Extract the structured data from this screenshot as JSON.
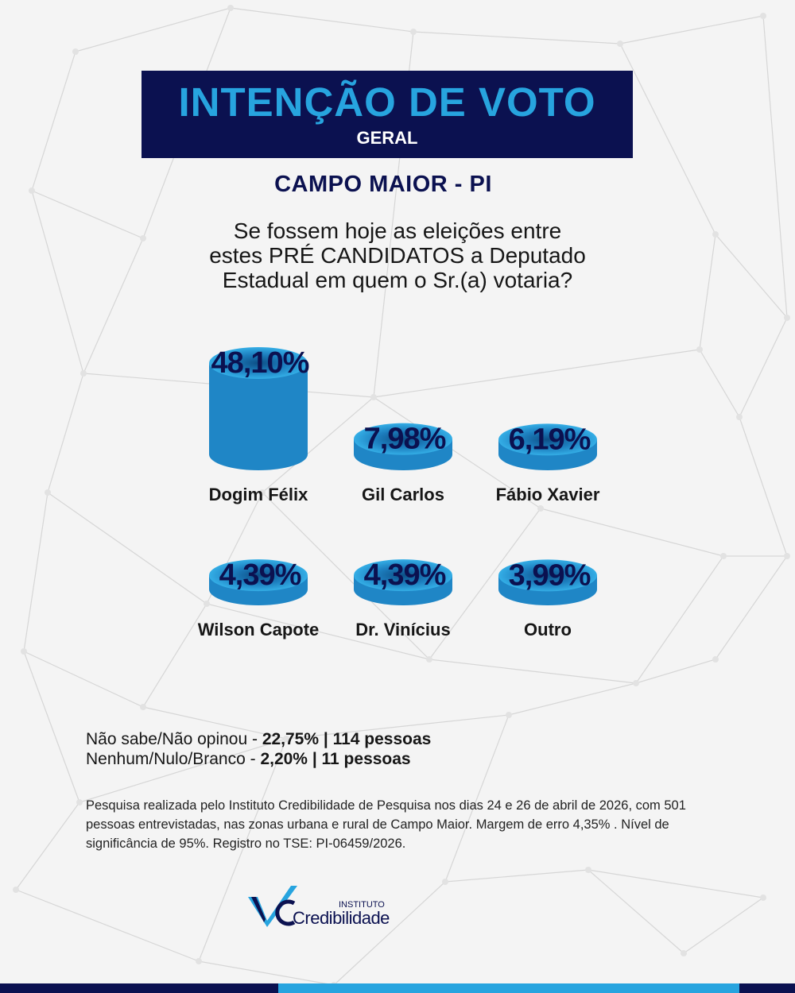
{
  "header": {
    "title": "INTENÇÃO DE VOTO",
    "subtitle": "GERAL"
  },
  "location": "CAMPO MAIOR - PI",
  "question": {
    "line1": "Se fossem hoje as eleições entre",
    "line2": "estes PRÉ CANDIDATOS a Deputado",
    "line3": "Estadual em quem o Sr.(a) votaria?"
  },
  "chart_data": {
    "type": "bar",
    "categories": [
      "Dogim Félix",
      "Gil Carlos",
      "Fábio Xavier",
      "Wilson Capote",
      "Dr. Vinícius",
      "Outro"
    ],
    "values": [
      48.1,
      7.98,
      6.19,
      4.39,
      4.39,
      3.99
    ],
    "value_labels": [
      "48,10%",
      "7,98%",
      "6,19%",
      "4,39%",
      "4,39%",
      "3,99%"
    ],
    "unit": "%",
    "layout": "two rows of three cylinders"
  },
  "summary": {
    "line1_label": "Não sabe/Não opinou - ",
    "line1_value": "22,75% | 114 pessoas",
    "line2_label": "Nenhum/Nulo/Branco - ",
    "line2_value": "2,20% | 11 pessoas"
  },
  "methodology": "Pesquisa realizada pelo  Instituto Credibilidade de Pesquisa nos dias 24 e 26 de abril de 2026, com 501 pessoas entrevistadas, nas zonas urbana e rural de Campo Maior. Margem de erro 4,35% . Nível de significância de 95%. Registro no TSE:  PI-06459/2026.",
  "logo": {
    "small_text": "INSTITUTO",
    "word": "Credibilidade",
    "icon": "checkmark-logo-icon"
  },
  "colors": {
    "navy": "#0b1150",
    "accent_blue": "#27a4df",
    "cylinder_side": "#1f86c6",
    "cylinder_top": "#34aee6",
    "footer": [
      "#0b1150",
      "#27a4df",
      "#0b1150"
    ]
  }
}
